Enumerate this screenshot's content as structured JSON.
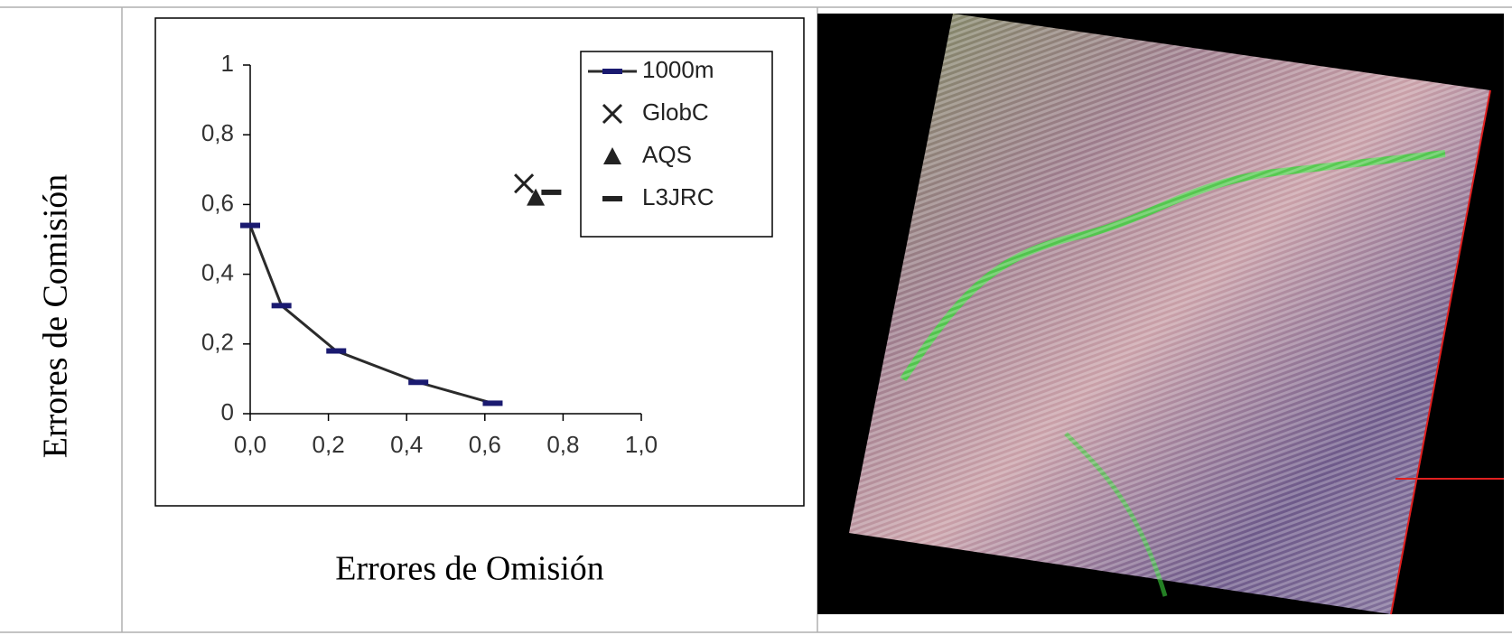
{
  "chart_data": {
    "type": "line",
    "xlabel": "Errores de Omisión",
    "ylabel": "Errores de Comisión",
    "xlim": [
      0,
      1
    ],
    "ylim": [
      0,
      1
    ],
    "xticks": [
      {
        "value": 0,
        "label": "0,0"
      },
      {
        "value": 0.2,
        "label": "0,2"
      },
      {
        "value": 0.4,
        "label": "0,4"
      },
      {
        "value": 0.6,
        "label": "0,6"
      },
      {
        "value": 0.8,
        "label": "0,8"
      },
      {
        "value": 1,
        "label": "1,0"
      }
    ],
    "yticks": [
      0,
      {
        "value": 0.2,
        "label": "0,2"
      },
      {
        "value": 0.4,
        "label": "0,4"
      },
      {
        "value": 0.6,
        "label": "0,6"
      },
      {
        "value": 0.8,
        "label": "0,8"
      },
      1
    ],
    "legend": "upper right",
    "series": [
      {
        "name": "1000m",
        "color": "#2b2b2b",
        "marker": "dash",
        "marker_color": "#1a1a70",
        "x": [
          0.0,
          0.08,
          0.22,
          0.43,
          0.62
        ],
        "values": [
          0.54,
          0.31,
          0.18,
          0.09,
          0.03
        ]
      },
      {
        "name": "GlobC",
        "color": "#222222",
        "marker": "x",
        "x": [
          0.7
        ],
        "values": [
          0.66
        ]
      },
      {
        "name": "AQS",
        "color": "#222222",
        "marker": "triangle",
        "x": [
          0.73
        ],
        "values": [
          0.62
        ]
      },
      {
        "name": "L3JRC",
        "color": "#222222",
        "marker": "dash",
        "x": [
          0.77
        ],
        "values": [
          0.635
        ]
      }
    ]
  }
}
